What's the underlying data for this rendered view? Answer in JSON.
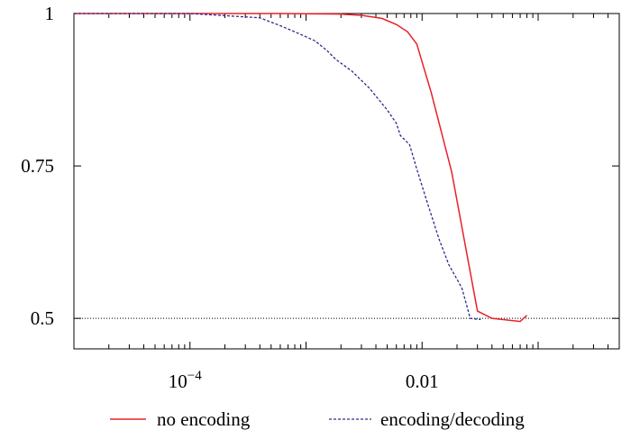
{
  "chart_data": {
    "type": "line",
    "title": "",
    "xlabel": "",
    "ylabel": "",
    "x_scale": "log",
    "xlim": [
      1e-05,
      0.5
    ],
    "ylim": [
      0.45,
      1.0
    ],
    "grid": false,
    "legend_position": "bottom",
    "x_ticks": [
      {
        "value": 0.0001,
        "base": "10",
        "exp": "−4"
      },
      {
        "value": 0.01,
        "label": "0.01"
      }
    ],
    "y_ticks": [
      {
        "value": 1.0,
        "label": "1"
      },
      {
        "value": 0.75,
        "label": "0.75"
      },
      {
        "value": 0.5,
        "label": "0.5"
      }
    ],
    "reference_line": {
      "y": 0.5,
      "color": "#000000",
      "style": "dotted"
    },
    "series": [
      {
        "name": "no encoding",
        "color": "#e8202a",
        "style": "solid",
        "points": [
          [
            1e-05,
            1.0
          ],
          [
            5e-05,
            1.0
          ],
          [
            0.0002,
            1.0
          ],
          [
            0.0006,
            1.0
          ],
          [
            0.002,
            0.999
          ],
          [
            0.003,
            0.997
          ],
          [
            0.0045,
            0.992
          ],
          [
            0.006,
            0.982
          ],
          [
            0.0075,
            0.97
          ],
          [
            0.009,
            0.95
          ],
          [
            0.012,
            0.87
          ],
          [
            0.018,
            0.74
          ],
          [
            0.03,
            0.512
          ],
          [
            0.04,
            0.5
          ],
          [
            0.07,
            0.495
          ],
          [
            0.08,
            0.505
          ]
        ]
      },
      {
        "name": "encoding/decoding",
        "color": "#2a2c8c",
        "style": "dotted",
        "points": [
          [
            1e-05,
            1.0
          ],
          [
            0.0001,
            1.0
          ],
          [
            0.0004,
            0.993
          ],
          [
            0.0006,
            0.98
          ],
          [
            0.0008,
            0.97
          ],
          [
            0.0012,
            0.955
          ],
          [
            0.0015,
            0.94
          ],
          [
            0.0018,
            0.925
          ],
          [
            0.0025,
            0.905
          ],
          [
            0.0035,
            0.878
          ],
          [
            0.005,
            0.842
          ],
          [
            0.006,
            0.82
          ],
          [
            0.0065,
            0.8
          ],
          [
            0.0078,
            0.785
          ],
          [
            0.009,
            0.745
          ],
          [
            0.011,
            0.692
          ],
          [
            0.014,
            0.63
          ],
          [
            0.017,
            0.588
          ],
          [
            0.022,
            0.55
          ],
          [
            0.026,
            0.5
          ],
          [
            0.032,
            0.498
          ]
        ]
      }
    ]
  }
}
